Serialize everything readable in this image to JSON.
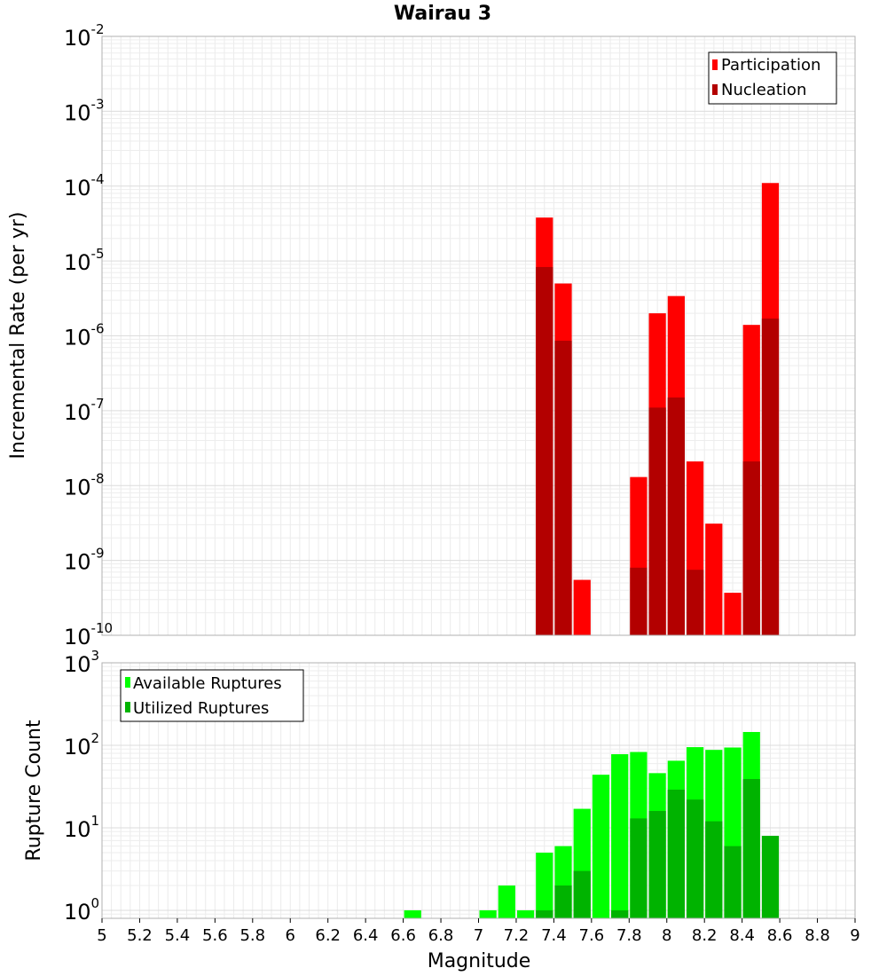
{
  "chart_data": [
    {
      "type": "bar",
      "title": "Wairau 3",
      "ylabel": "Incremental Rate (per yr)",
      "xlim": [
        5,
        9
      ],
      "ylim": [
        1e-10,
        0.01
      ],
      "yscale": "log",
      "grid": true,
      "legend_position": "top-right",
      "bin_width": 0.1,
      "x_ticks": [
        "5",
        "5.2",
        "5.4",
        "5.6",
        "5.8",
        "6",
        "6.2",
        "6.4",
        "6.6",
        "6.8",
        "7",
        "7.2",
        "7.4",
        "7.6",
        "7.8",
        "8",
        "8.2",
        "8.4",
        "8.6",
        "8.8",
        "9"
      ],
      "y_ticks": [
        {
          "base": "10",
          "exp": "-10"
        },
        {
          "base": "10",
          "exp": "-9"
        },
        {
          "base": "10",
          "exp": "-8"
        },
        {
          "base": "10",
          "exp": "-7"
        },
        {
          "base": "10",
          "exp": "-6"
        },
        {
          "base": "10",
          "exp": "-5"
        },
        {
          "base": "10",
          "exp": "-4"
        },
        {
          "base": "10",
          "exp": "-3"
        },
        {
          "base": "10",
          "exp": "-2"
        }
      ],
      "series": [
        {
          "name": "Participation",
          "color": "#ff0000",
          "x": [
            7.35,
            7.45,
            7.55,
            7.85,
            7.95,
            8.05,
            8.15,
            8.25,
            8.35,
            8.45,
            8.55
          ],
          "values": [
            3.8e-05,
            5e-06,
            5.5e-10,
            1.3e-08,
            2e-06,
            3.4e-06,
            2.1e-08,
            3.1e-09,
            3.7e-10,
            1.4e-06,
            0.00011
          ]
        },
        {
          "name": "Nucleation",
          "color": "#b30000",
          "x": [
            7.35,
            7.45,
            7.85,
            7.95,
            8.05,
            8.15,
            8.45,
            8.55
          ],
          "values": [
            8.3e-06,
            8.6e-07,
            8e-10,
            1.1e-07,
            1.5e-07,
            7.5e-10,
            2.1e-08,
            1.7e-06
          ]
        }
      ]
    },
    {
      "type": "bar",
      "xlabel": "Magnitude",
      "ylabel": "Rupture Count",
      "xlim": [
        5,
        9
      ],
      "ylim": [
        0.8,
        1000
      ],
      "yscale": "log",
      "grid": true,
      "legend_position": "top-left",
      "bin_width": 0.1,
      "x_ticks": [
        "5",
        "5.2",
        "5.4",
        "5.6",
        "5.8",
        "6",
        "6.2",
        "6.4",
        "6.6",
        "6.8",
        "7",
        "7.2",
        "7.4",
        "7.6",
        "7.8",
        "8",
        "8.2",
        "8.4",
        "8.6",
        "8.8",
        "9"
      ],
      "y_ticks": [
        {
          "base": "10",
          "exp": "0"
        },
        {
          "base": "10",
          "exp": "1"
        },
        {
          "base": "10",
          "exp": "2"
        },
        {
          "base": "10",
          "exp": "3"
        }
      ],
      "series": [
        {
          "name": "Available Ruptures",
          "color": "#00ff00",
          "x": [
            6.65,
            7.05,
            7.15,
            7.25,
            7.35,
            7.45,
            7.55,
            7.65,
            7.75,
            7.85,
            7.95,
            8.05,
            8.15,
            8.25,
            8.35,
            8.45
          ],
          "values": [
            1,
            1,
            2,
            1,
            5,
            6,
            17,
            44,
            78,
            83,
            46,
            65,
            95,
            88,
            94,
            145
          ]
        },
        {
          "name": "Utilized Ruptures",
          "color": "#00b300",
          "x": [
            7.35,
            7.45,
            7.55,
            7.75,
            7.85,
            7.95,
            8.05,
            8.15,
            8.25,
            8.35,
            8.45,
            8.55
          ],
          "values": [
            1,
            2,
            3,
            1,
            13,
            16,
            29,
            22,
            12,
            6,
            39,
            8
          ]
        }
      ]
    }
  ]
}
